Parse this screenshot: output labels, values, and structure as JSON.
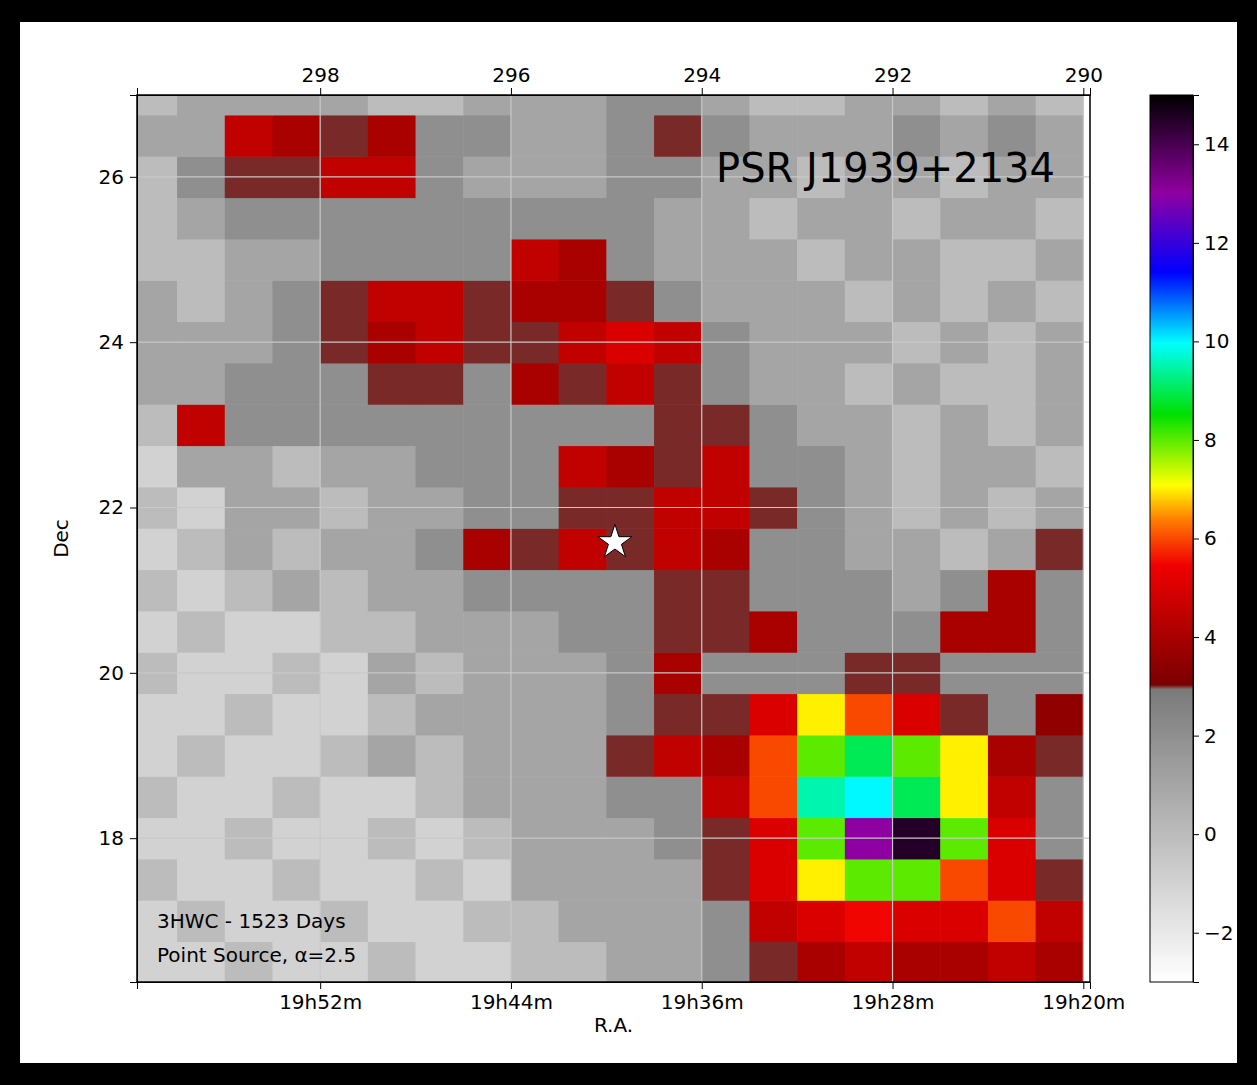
{
  "chart_data": {
    "type": "heatmap",
    "title": "PSR J1939+2134",
    "annotations": [
      "3HWC - 1523 Days",
      "Point Source, α=2.5"
    ],
    "x_label": "R.A.",
    "y_label": "Dec",
    "xlim": [
      299.92,
      289.93
    ],
    "ylim": [
      16.26,
      26.99
    ],
    "xticks": [
      {
        "value": 298,
        "label": "19h52m"
      },
      {
        "value": 296,
        "label": "19h44m"
      },
      {
        "value": 294,
        "label": "19h36m"
      },
      {
        "value": 292,
        "label": "19h28m"
      },
      {
        "value": 290,
        "label": "19h20m"
      }
    ],
    "x2ticks": [
      298,
      296,
      294,
      292,
      290
    ],
    "yticks": [
      18,
      20,
      22,
      24,
      26
    ],
    "grid": true,
    "x": [
      299.75,
      299.25,
      298.75,
      298.25,
      297.75,
      297.25,
      296.75,
      296.25,
      295.75,
      295.25,
      294.75,
      294.25,
      293.75,
      293.25,
      292.75,
      292.25,
      291.75,
      291.25,
      290.75,
      290.25
    ],
    "y": [
      16.5,
      17,
      17.5,
      18,
      18.5,
      19,
      19.5,
      20,
      20.5,
      21,
      21.5,
      22,
      22.5,
      23,
      23.5,
      24,
      24.5,
      25,
      25.5,
      26,
      26.5,
      27
    ],
    "z": [
      [
        -1,
        -1,
        0,
        -1,
        -1,
        0,
        -1,
        -1,
        0,
        0,
        1,
        1,
        2,
        3,
        4,
        4.5,
        4,
        4,
        4.5,
        4
      ],
      [
        -1,
        0,
        -1,
        -1,
        0,
        -1,
        -1,
        0,
        0,
        1,
        1,
        1,
        2,
        4.5,
        5,
        5.5,
        5,
        5,
        6,
        4.5
      ],
      [
        0,
        -1,
        -1,
        0,
        -1,
        -1,
        0,
        -1,
        1,
        1,
        1,
        1,
        3,
        5,
        7,
        8,
        8,
        6,
        5,
        3
      ],
      [
        -1,
        -1,
        0,
        -1,
        -1,
        0,
        -1,
        0,
        1,
        1,
        1,
        2,
        3,
        5,
        8,
        13,
        14.5,
        8,
        5,
        2
      ],
      [
        0,
        -1,
        -1,
        0,
        -1,
        -1,
        0,
        1,
        1,
        1,
        2,
        2,
        4.5,
        6,
        9.5,
        10,
        9,
        7,
        4.5,
        2
      ],
      [
        -1,
        0,
        -1,
        -1,
        0,
        1,
        0,
        1,
        1,
        1,
        3,
        4.5,
        4,
        6,
        8,
        9,
        8,
        7,
        4,
        3
      ],
      [
        -1,
        -1,
        0,
        -1,
        -1,
        0,
        1,
        1,
        1,
        1,
        2,
        3,
        3,
        5,
        7,
        6,
        5,
        3,
        2,
        3.5
      ],
      [
        0,
        -1,
        -1,
        0,
        -1,
        1,
        0,
        1,
        1,
        1,
        2,
        4,
        2,
        2,
        2,
        3,
        3,
        2,
        2,
        2
      ],
      [
        -1,
        0,
        -1,
        -1,
        0,
        0,
        1,
        1,
        1,
        2,
        2,
        3,
        3,
        4,
        2,
        2,
        2,
        4,
        4,
        2
      ],
      [
        0,
        -1,
        0,
        1,
        0,
        1,
        1,
        2,
        2,
        2,
        2,
        3,
        3,
        2,
        2,
        2,
        1,
        2,
        4,
        2
      ],
      [
        -1,
        0,
        1,
        0,
        1,
        1,
        2,
        4,
        3,
        4.5,
        3,
        4.5,
        4,
        2,
        2,
        1,
        1,
        0,
        1,
        3
      ],
      [
        0,
        -1,
        1,
        1,
        0,
        1,
        1,
        2,
        2,
        3,
        3,
        4.5,
        4.5,
        3,
        2,
        1,
        0,
        1,
        0,
        1
      ],
      [
        -1,
        1,
        1,
        0,
        1,
        1,
        2,
        2,
        2,
        4.5,
        4,
        3,
        4.5,
        2,
        2,
        1,
        0,
        1,
        1,
        0
      ],
      [
        0,
        4.5,
        2,
        2,
        2,
        2,
        2,
        2,
        2,
        2,
        2,
        3,
        3,
        2,
        1,
        1,
        0,
        1,
        0,
        1
      ],
      [
        1,
        1,
        2,
        2,
        2,
        3,
        3,
        2,
        4,
        3,
        4.5,
        3,
        2,
        1,
        1,
        0,
        1,
        0,
        0,
        1
      ],
      [
        1,
        1,
        1,
        2,
        3,
        4,
        4.5,
        3,
        3,
        4.5,
        5,
        4.5,
        2,
        1,
        1,
        1,
        0,
        1,
        0,
        1
      ],
      [
        1,
        0,
        1,
        2,
        3,
        4.5,
        4.5,
        3,
        4,
        4,
        3,
        2,
        1,
        1,
        1,
        0,
        1,
        0,
        1,
        0
      ],
      [
        0,
        0,
        1,
        1,
        2,
        2,
        2,
        2,
        4.5,
        4,
        2,
        1,
        1,
        1,
        0,
        1,
        1,
        0,
        0,
        1
      ],
      [
        0,
        1,
        2,
        2,
        2,
        2,
        2,
        2,
        2,
        2,
        2,
        1,
        1,
        0,
        1,
        1,
        0,
        1,
        1,
        0
      ],
      [
        0,
        2,
        3,
        3,
        4.5,
        4.5,
        2,
        1,
        1,
        1,
        2,
        2,
        1,
        1,
        0,
        1,
        1,
        0,
        1,
        1
      ],
      [
        1,
        1,
        4.5,
        4,
        3,
        4,
        2,
        2,
        1,
        1,
        2,
        3,
        2,
        1,
        1,
        1,
        2,
        1,
        2,
        1
      ],
      [
        0,
        1,
        1,
        1,
        1,
        0,
        0,
        1,
        1,
        1,
        2,
        2,
        1,
        0,
        0,
        1,
        1,
        0,
        1,
        0
      ]
    ],
    "colorbar": {
      "lim": [
        -3,
        15
      ],
      "ticks": [
        -2,
        0,
        2,
        4,
        6,
        8,
        10,
        12,
        14
      ]
    },
    "points": [
      {
        "x": 294.91,
        "y": 21.58,
        "marker": "star",
        "color": "#ffffff"
      }
    ]
  }
}
